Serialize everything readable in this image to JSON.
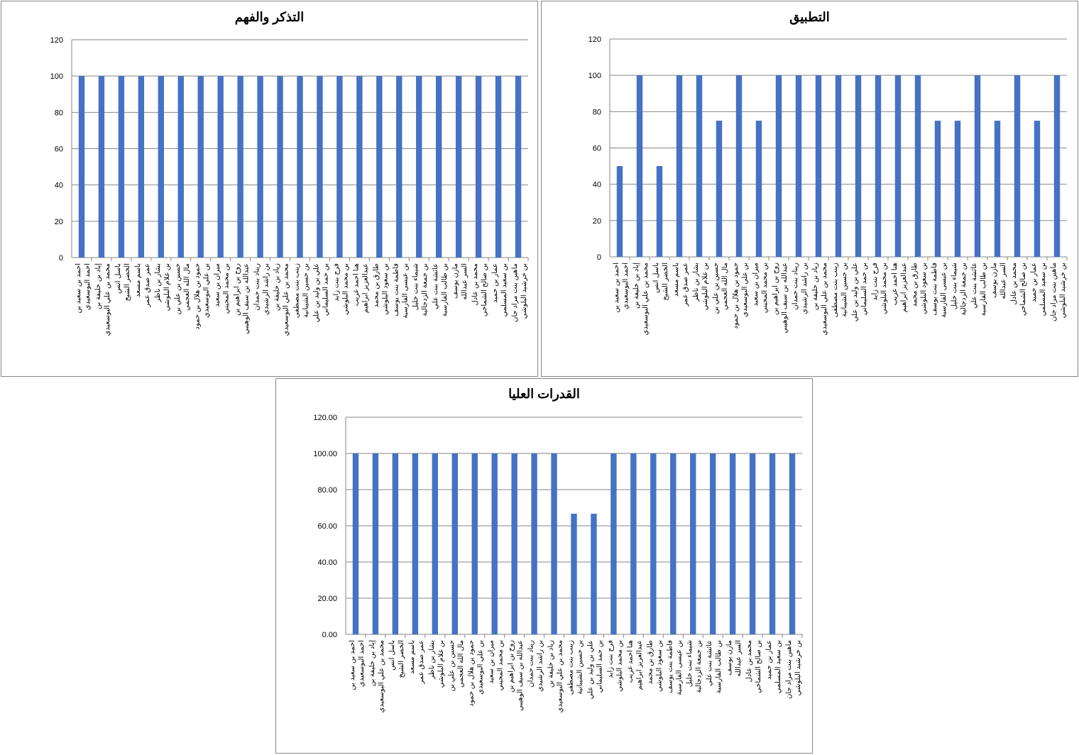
{
  "colors": {
    "bar": "#4472C4",
    "grid": "#868686"
  },
  "chart_data": [
    {
      "type": "bar",
      "title": "التذكر والفهم",
      "ylim": [
        0,
        120
      ],
      "yticks": [
        0,
        20,
        40,
        60,
        80,
        100,
        120
      ],
      "decimals": 0,
      "categories": [
        "احمد بن سعيد بن احمد البوسعيدي",
        "إياد بن خليفة بن محمد بن علي البوسعيدي",
        "باسل انس الخضر الشيخ",
        "باسم مسعد عمر صدق عمر",
        "بشار بن ناظر بن غلام البلوشي",
        "حسين بن علي بن مال الله العجمي",
        "حمود بن هلال بن حمود بن علي البوسعيدي",
        "ميران بن سعيد بن محمد المجيني",
        "روح بن ابراهيم بن عبدالله بن سيف الوهيبي",
        "ريناد بنت حمدان بن راشد الرشيدي",
        "زياد بن خليفة بن محمد بن علي البوسعيدي",
        "زينب بنت مصطفى بن حسين الشيبانية",
        "علي بن وليد بن علي بن حمد السليماني",
        "فرح بنت زايد بن محمد البلوشي",
        "هنا احمد غريب عبدالعزيز ابراهيم",
        "طارق بن محمد بن سعود البلوشي",
        "فاطمة بنت يوسف بن عيسى الفارسية",
        "شيماء بنت خليل بن جمعة الزدجالية",
        "عائشة بنت علي بن طالب الفارسية",
        "مازن يوسف السر عبدالله",
        "محمد بن عادل بن صالح الشماخي",
        "عمار بن حميد بن سعيد المسلمي",
        "ماهين بنت مراد جان بن خرشيد البلوشي"
      ],
      "values": [
        100,
        100,
        100,
        100,
        100,
        100,
        100,
        100,
        100,
        100,
        100,
        100,
        100,
        100,
        100,
        100,
        100,
        100,
        100,
        100,
        100,
        100,
        100
      ]
    },
    {
      "type": "bar",
      "title": "التطبيق",
      "ylim": [
        0,
        120
      ],
      "yticks": [
        0,
        20,
        40,
        60,
        80,
        100,
        120
      ],
      "decimals": 0,
      "categories": "same",
      "values": [
        50,
        100,
        50,
        100,
        100,
        75,
        100,
        75,
        100,
        100,
        100,
        100,
        100,
        100,
        100,
        100,
        75,
        75,
        100,
        75,
        100,
        75,
        100
      ]
    },
    {
      "type": "bar",
      "title": "القدرات العليا",
      "ylim": [
        0,
        120
      ],
      "yticks": [
        0,
        20,
        40,
        60,
        80,
        100,
        120
      ],
      "decimals": 2,
      "categories": "same",
      "values": [
        100,
        100,
        100,
        100,
        100,
        100,
        100,
        100,
        100,
        100,
        100,
        66.67,
        66.67,
        100,
        100,
        100,
        100,
        100,
        100,
        100,
        100,
        100,
        100
      ]
    }
  ]
}
